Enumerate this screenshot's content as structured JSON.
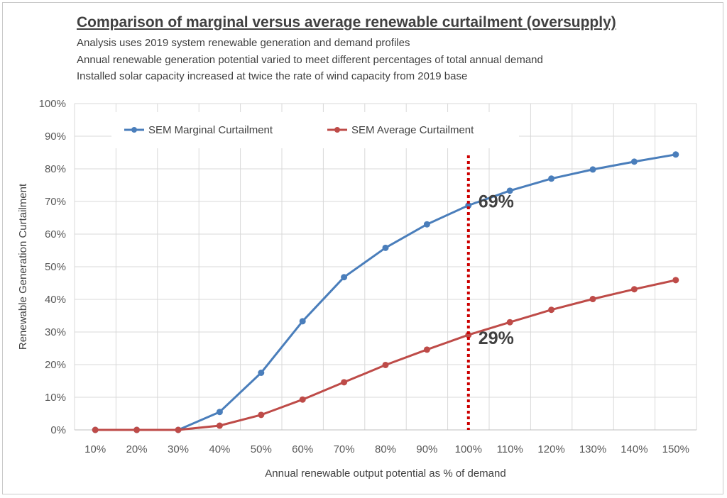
{
  "chart_data": {
    "type": "line",
    "title": "Comparison of marginal versus average renewable curtailment (oversupply)",
    "subtitles": [
      "Analysis uses 2019 system renewable generation and demand profiles",
      "Annual renewable generation potential varied to meet different percentages of total annual demand",
      "Installed solar capacity increased at twice the rate of wind capacity from 2019 base"
    ],
    "xlabel": "Annual renewable output potential as % of demand",
    "ylabel": "Renewable Generation Curtailment",
    "categories": [
      "10%",
      "20%",
      "30%",
      "40%",
      "50%",
      "60%",
      "70%",
      "80%",
      "90%",
      "100%",
      "110%",
      "120%",
      "130%",
      "140%",
      "150%"
    ],
    "y_tick_labels": [
      "0%",
      "10%",
      "20%",
      "30%",
      "40%",
      "50%",
      "60%",
      "70%",
      "80%",
      "90%",
      "100%"
    ],
    "ylim": [
      0,
      100
    ],
    "grid": true,
    "legend_position": "top-left",
    "series": [
      {
        "name": "SEM Marginal Curtailment",
        "color": "#4a7ebb",
        "values": [
          0,
          0,
          0,
          5.5,
          17.5,
          33.3,
          46.8,
          55.8,
          63,
          68.8,
          73.3,
          77,
          79.8,
          82.2,
          84.4
        ]
      },
      {
        "name": "SEM Average Curtailment",
        "color": "#be4b48",
        "values": [
          0,
          0,
          0,
          1.3,
          4.6,
          9.3,
          14.6,
          19.9,
          24.6,
          29.1,
          33,
          36.8,
          40.1,
          43.1,
          45.9
        ]
      }
    ],
    "marker_line": {
      "category": "100%",
      "color": "#cc0000",
      "style": "dotted"
    },
    "annotations": [
      "69%",
      "29%"
    ]
  }
}
